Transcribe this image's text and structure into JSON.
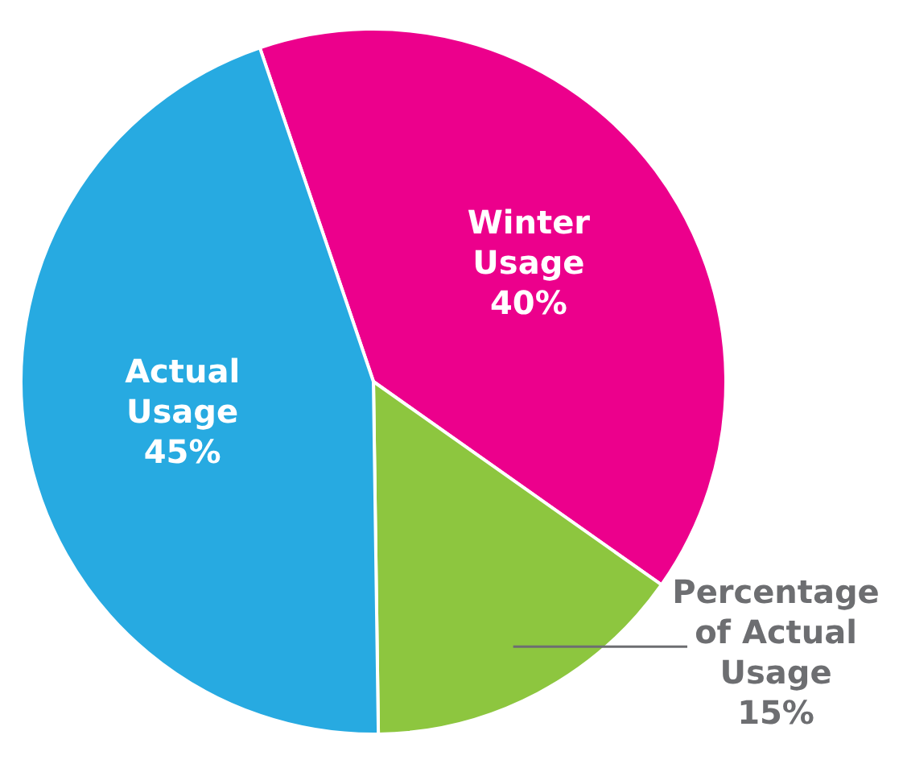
{
  "chart_data": {
    "type": "pie",
    "categories": [
      "Winter Usage",
      "Percentage of Actual Usage",
      "Actual Usage"
    ],
    "values": [
      40,
      15,
      45
    ],
    "colors": [
      "#ec008c",
      "#8dc63f",
      "#27aae1"
    ],
    "value_labels": [
      "40%",
      "15%",
      "45%"
    ],
    "legend": false
  }
}
